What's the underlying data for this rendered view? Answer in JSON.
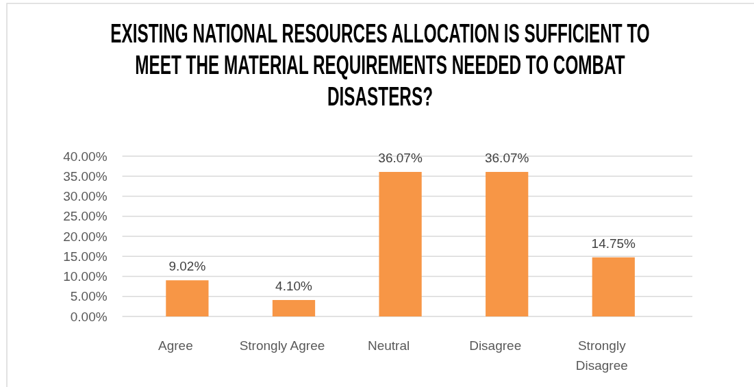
{
  "chart_data": {
    "type": "bar",
    "title": "EXISTING NATIONAL RESOURCES ALLOCATION IS SUFFICIENT TO MEET THE MATERIAL REQUIREMENTS NEEDED TO COMBAT DISASTERS?",
    "categories": [
      "Agree",
      "Strongly Agree",
      "Neutral",
      "Disagree",
      "Strongly Disagree"
    ],
    "values": [
      9.02,
      4.1,
      36.07,
      36.07,
      14.75
    ],
    "value_labels": [
      "9.02%",
      "4.10%",
      "36.07%",
      "36.07%",
      "14.75%"
    ],
    "color": "#f79646",
    "ylim": [
      0,
      40
    ],
    "yticks": [
      {
        "value": 0,
        "label": "0.00%"
      },
      {
        "value": 5,
        "label": "5.00%"
      },
      {
        "value": 10,
        "label": "10.00%"
      },
      {
        "value": 15,
        "label": "15.00%"
      },
      {
        "value": 20,
        "label": "20.00%"
      },
      {
        "value": 25,
        "label": "25.00%"
      },
      {
        "value": 30,
        "label": "30.00%"
      },
      {
        "value": 35,
        "label": "35.00%"
      },
      {
        "value": 40,
        "label": "40.00%"
      }
    ],
    "grid": "y"
  }
}
